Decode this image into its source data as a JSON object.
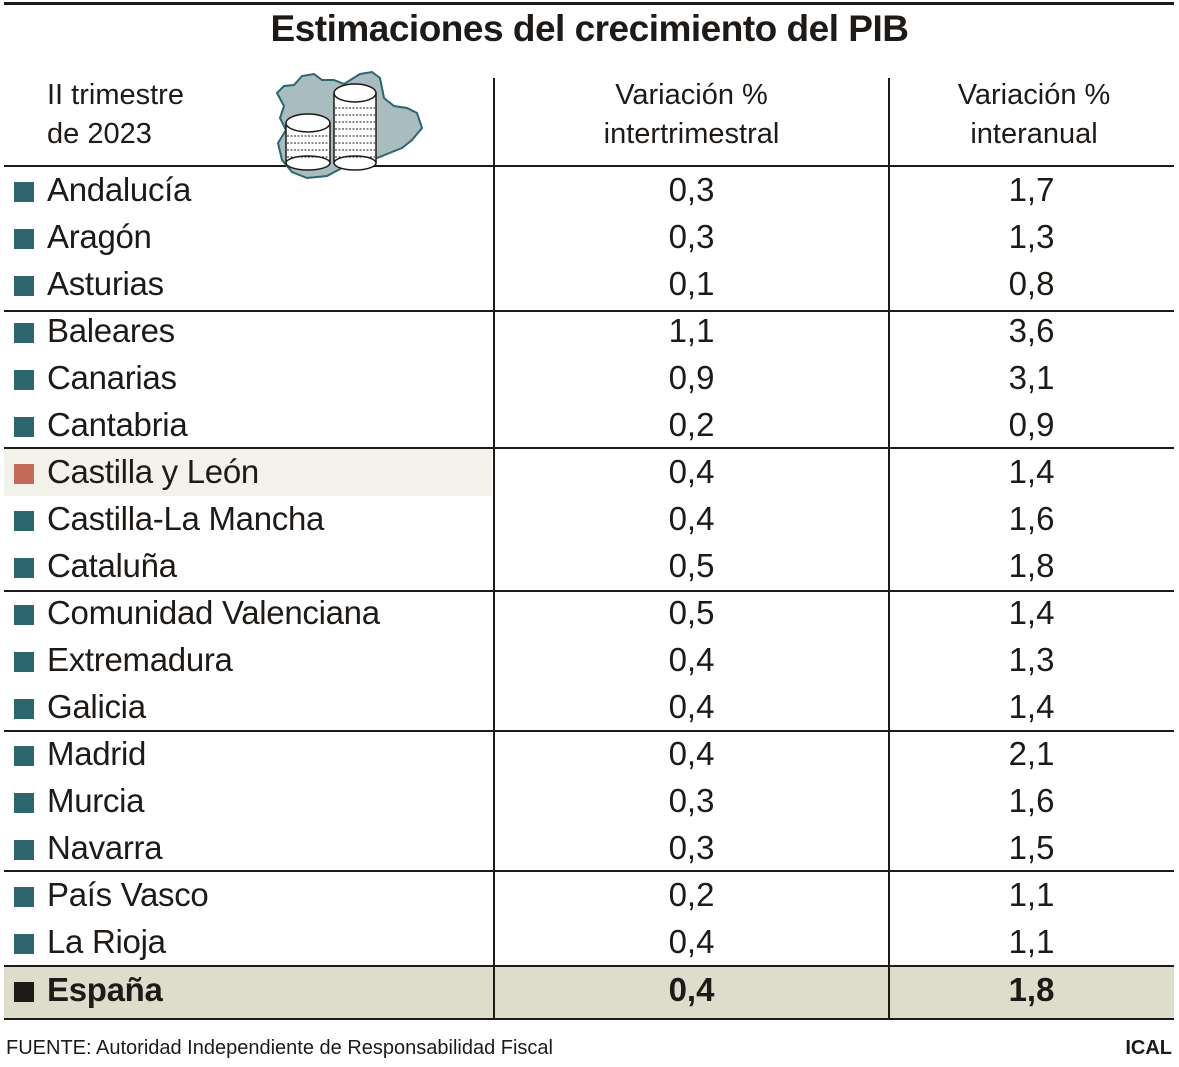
{
  "title": "Estimaciones del crecimiento del PIB",
  "colors": {
    "region_marker": "#2e6670",
    "highlight_marker": "#c46a58",
    "total_marker": "#1e1a17",
    "highlight_bg": "#f2f1ea",
    "total_bg": "#dedccb"
  },
  "icon": "castilla-y-leon-map-with-coin-stacks-icon",
  "chart_data": {
    "type": "table",
    "title": "Estimaciones del crecimiento del PIB",
    "columns": [
      "II trimestre de 2023",
      "Variación % intertrimestral",
      "Variación % interanual"
    ],
    "header": {
      "period_line1": "II trimestre",
      "period_line2": "de 2023",
      "col1_line1": "Variación %",
      "col1_line2": "intertrimestral",
      "col2_line1": "Variación %",
      "col2_line2": "interanual"
    },
    "rows": [
      {
        "region": "Andalucía",
        "intertrimestral": "0,3",
        "interanual": "1,7"
      },
      {
        "region": "Aragón",
        "intertrimestral": "0,3",
        "interanual": "1,3"
      },
      {
        "region": "Asturias",
        "intertrimestral": "0,1",
        "interanual": "0,8"
      },
      {
        "region": "Baleares",
        "intertrimestral": "1,1",
        "interanual": "3,6"
      },
      {
        "region": "Canarias",
        "intertrimestral": "0,9",
        "interanual": "3,1"
      },
      {
        "region": "Cantabria",
        "intertrimestral": "0,2",
        "interanual": "0,9"
      },
      {
        "region": "Castilla y León",
        "intertrimestral": "0,4",
        "interanual": "1,4",
        "highlight": true
      },
      {
        "region": "Castilla-La Mancha",
        "intertrimestral": "0,4",
        "interanual": "1,6"
      },
      {
        "region": "Cataluña",
        "intertrimestral": "0,5",
        "interanual": "1,8"
      },
      {
        "region": "Comunidad Valenciana",
        "intertrimestral": "0,5",
        "interanual": "1,4"
      },
      {
        "region": "Extremadura",
        "intertrimestral": "0,4",
        "interanual": "1,3"
      },
      {
        "region": "Galicia",
        "intertrimestral": "0,4",
        "interanual": "1,4"
      },
      {
        "region": "Madrid",
        "intertrimestral": "0,4",
        "interanual": "2,1"
      },
      {
        "region": "Murcia",
        "intertrimestral": "0,3",
        "interanual": "1,6"
      },
      {
        "region": "Navarra",
        "intertrimestral": "0,3",
        "interanual": "1,5"
      },
      {
        "region": "País Vasco",
        "intertrimestral": "0,2",
        "interanual": "1,1"
      },
      {
        "region": "La Rioja",
        "intertrimestral": "0,4",
        "interanual": "1,1"
      },
      {
        "region": "España",
        "intertrimestral": "0,4",
        "interanual": "1,8",
        "total": true
      }
    ]
  },
  "footer": {
    "source": "FUENTE: Autoridad Independiente de Responsabilidad Fiscal",
    "credit": "ICAL"
  }
}
